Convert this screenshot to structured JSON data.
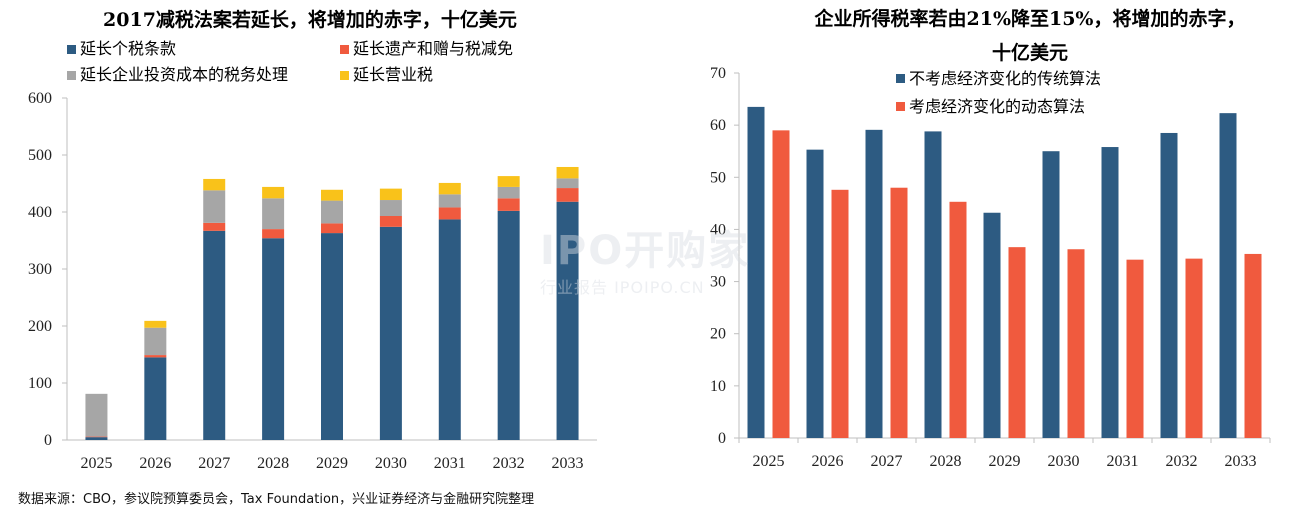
{
  "chart_data": [
    {
      "type": "bar",
      "stacked": true,
      "title": "2017减税法案若延长，将增加的赤字，十亿美元",
      "categories": [
        "2025",
        "2026",
        "2027",
        "2028",
        "2029",
        "2030",
        "2031",
        "2032",
        "2033"
      ],
      "ylim": [
        0,
        600
      ],
      "yticks": [
        "0",
        "100",
        "200",
        "300",
        "400",
        "500",
        "600"
      ],
      "grid": false,
      "legend": "top",
      "series": [
        {
          "name": "延长个税条款",
          "color": "#2d5b82",
          "values": [
            5,
            145,
            367,
            354,
            363,
            374,
            387,
            402,
            418
          ]
        },
        {
          "name": "延长遗产和赠与税减免",
          "color": "#f05a3e",
          "values": [
            1,
            4,
            14,
            16,
            17,
            19,
            21,
            22,
            24
          ]
        },
        {
          "name": "延长企业投资成本的税务处理",
          "color": "#a6a6a6",
          "values": [
            75,
            48,
            57,
            54,
            40,
            28,
            23,
            20,
            17
          ]
        },
        {
          "name": "延长营业税",
          "color": "#f9c21a",
          "values": [
            0,
            12,
            20,
            20,
            19,
            20,
            20,
            19,
            20
          ]
        }
      ]
    },
    {
      "type": "bar",
      "title": "企业所得税率若由21%降至15%，将增加的赤字，十亿美元",
      "categories": [
        "2025",
        "2026",
        "2027",
        "2028",
        "2029",
        "2030",
        "2031",
        "2032",
        "2033"
      ],
      "ylim": [
        0,
        70
      ],
      "yticks": [
        "0",
        "10",
        "20",
        "30",
        "40",
        "50",
        "60",
        "70"
      ],
      "grid": false,
      "legend": "top-left",
      "series": [
        {
          "name": "不考虑经济变化的传统算法",
          "color": "#2d5b82",
          "values": [
            63.5,
            55.3,
            59.1,
            58.8,
            43.2,
            55.0,
            55.8,
            58.5,
            62.3
          ]
        },
        {
          "name": "考虑经济变化的动态算法",
          "color": "#f05a3e",
          "values": [
            59.0,
            47.6,
            48.0,
            45.3,
            36.6,
            36.2,
            34.2,
            34.4,
            35.3
          ]
        }
      ]
    }
  ],
  "source": "数据来源：CBO，参议院预算委员会，Tax Foundation，兴业证券经济与金融研究院整理",
  "watermark": {
    "brand": "IPO开购家",
    "sub": "行业报告 IPOIPO.CN"
  }
}
